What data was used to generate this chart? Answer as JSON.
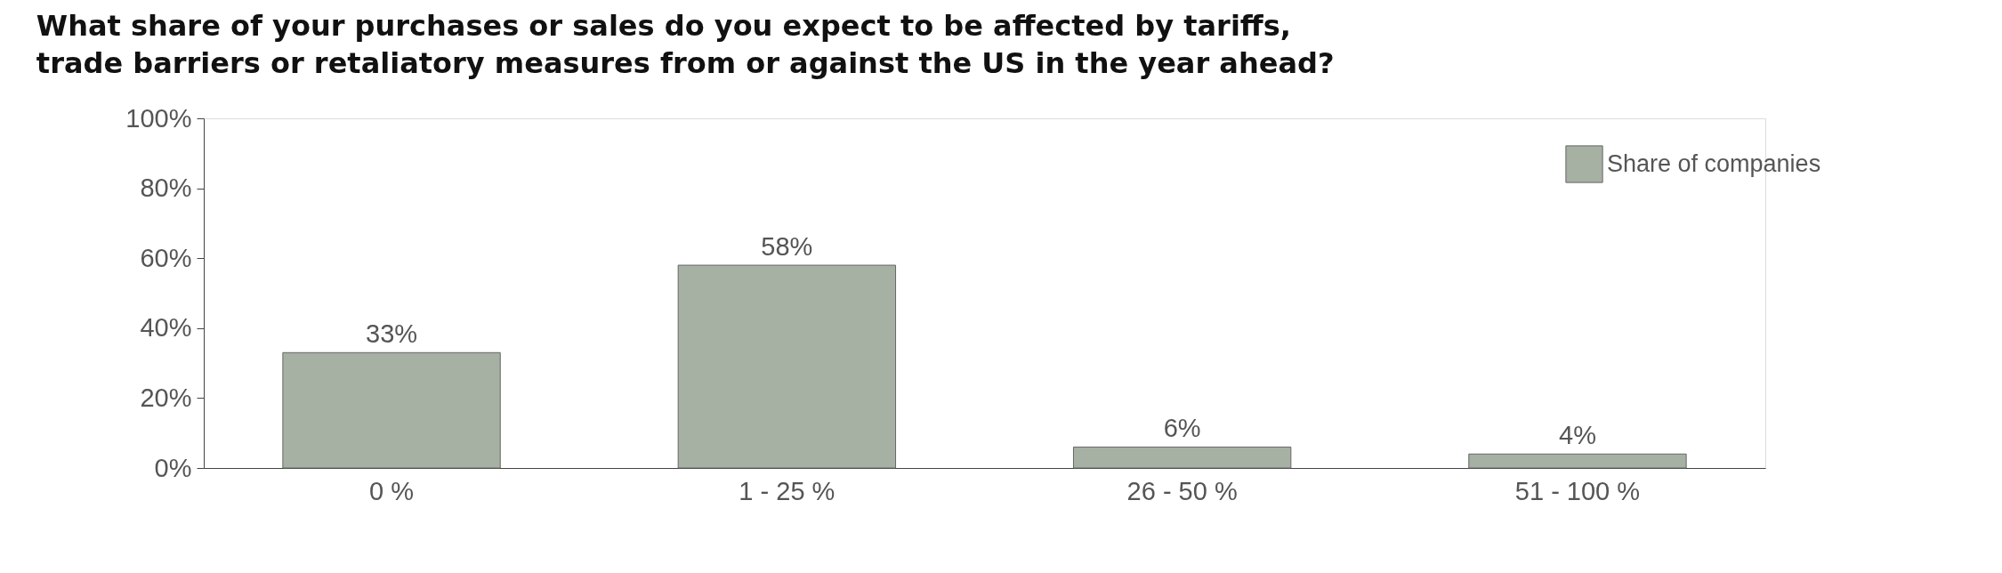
{
  "chart_data": {
    "type": "bar",
    "title": "What share of your purchases or sales do you expect to be affected by tariffs, trade barriers or retaliatory measures from or against the US in the year ahead?",
    "categories": [
      "0 %",
      "1 - 25 %",
      "26 - 50 %",
      "51 - 100 %"
    ],
    "series": [
      {
        "name": "Share of companies",
        "color": "#a6b0a3",
        "values": [
          33,
          58,
          6,
          4
        ],
        "value_labels": [
          "33%",
          "58%",
          "6%",
          "4%"
        ]
      }
    ],
    "ylim": [
      0,
      100
    ],
    "yticks": [
      {
        "value": 0,
        "label": "0%"
      },
      {
        "value": 20,
        "label": "20%"
      },
      {
        "value": 40,
        "label": "40%"
      },
      {
        "value": 60,
        "label": "60%"
      },
      {
        "value": 80,
        "label": "80%"
      },
      {
        "value": 100,
        "label": "100%"
      }
    ],
    "grid": false,
    "legend": "top right"
  }
}
